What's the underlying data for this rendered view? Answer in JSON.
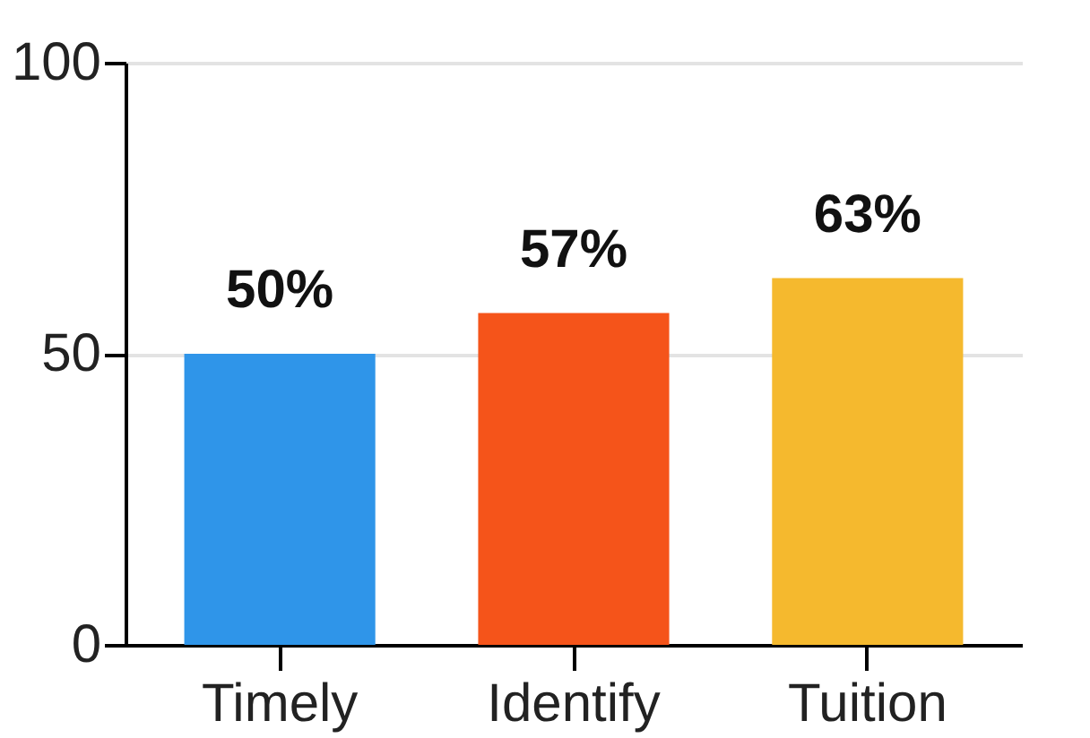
{
  "chart_data": {
    "type": "bar",
    "categories": [
      "Timely",
      "Identify",
      "Tuition"
    ],
    "values": [
      50,
      57,
      63
    ],
    "colors": [
      "#2f95e9",
      "#f5541a",
      "#f5b92e"
    ],
    "value_labels": [
      "50%",
      "57%",
      "63%"
    ],
    "ylim": [
      0,
      100
    ],
    "yticks": [
      0,
      50,
      100
    ],
    "grid": "y"
  }
}
